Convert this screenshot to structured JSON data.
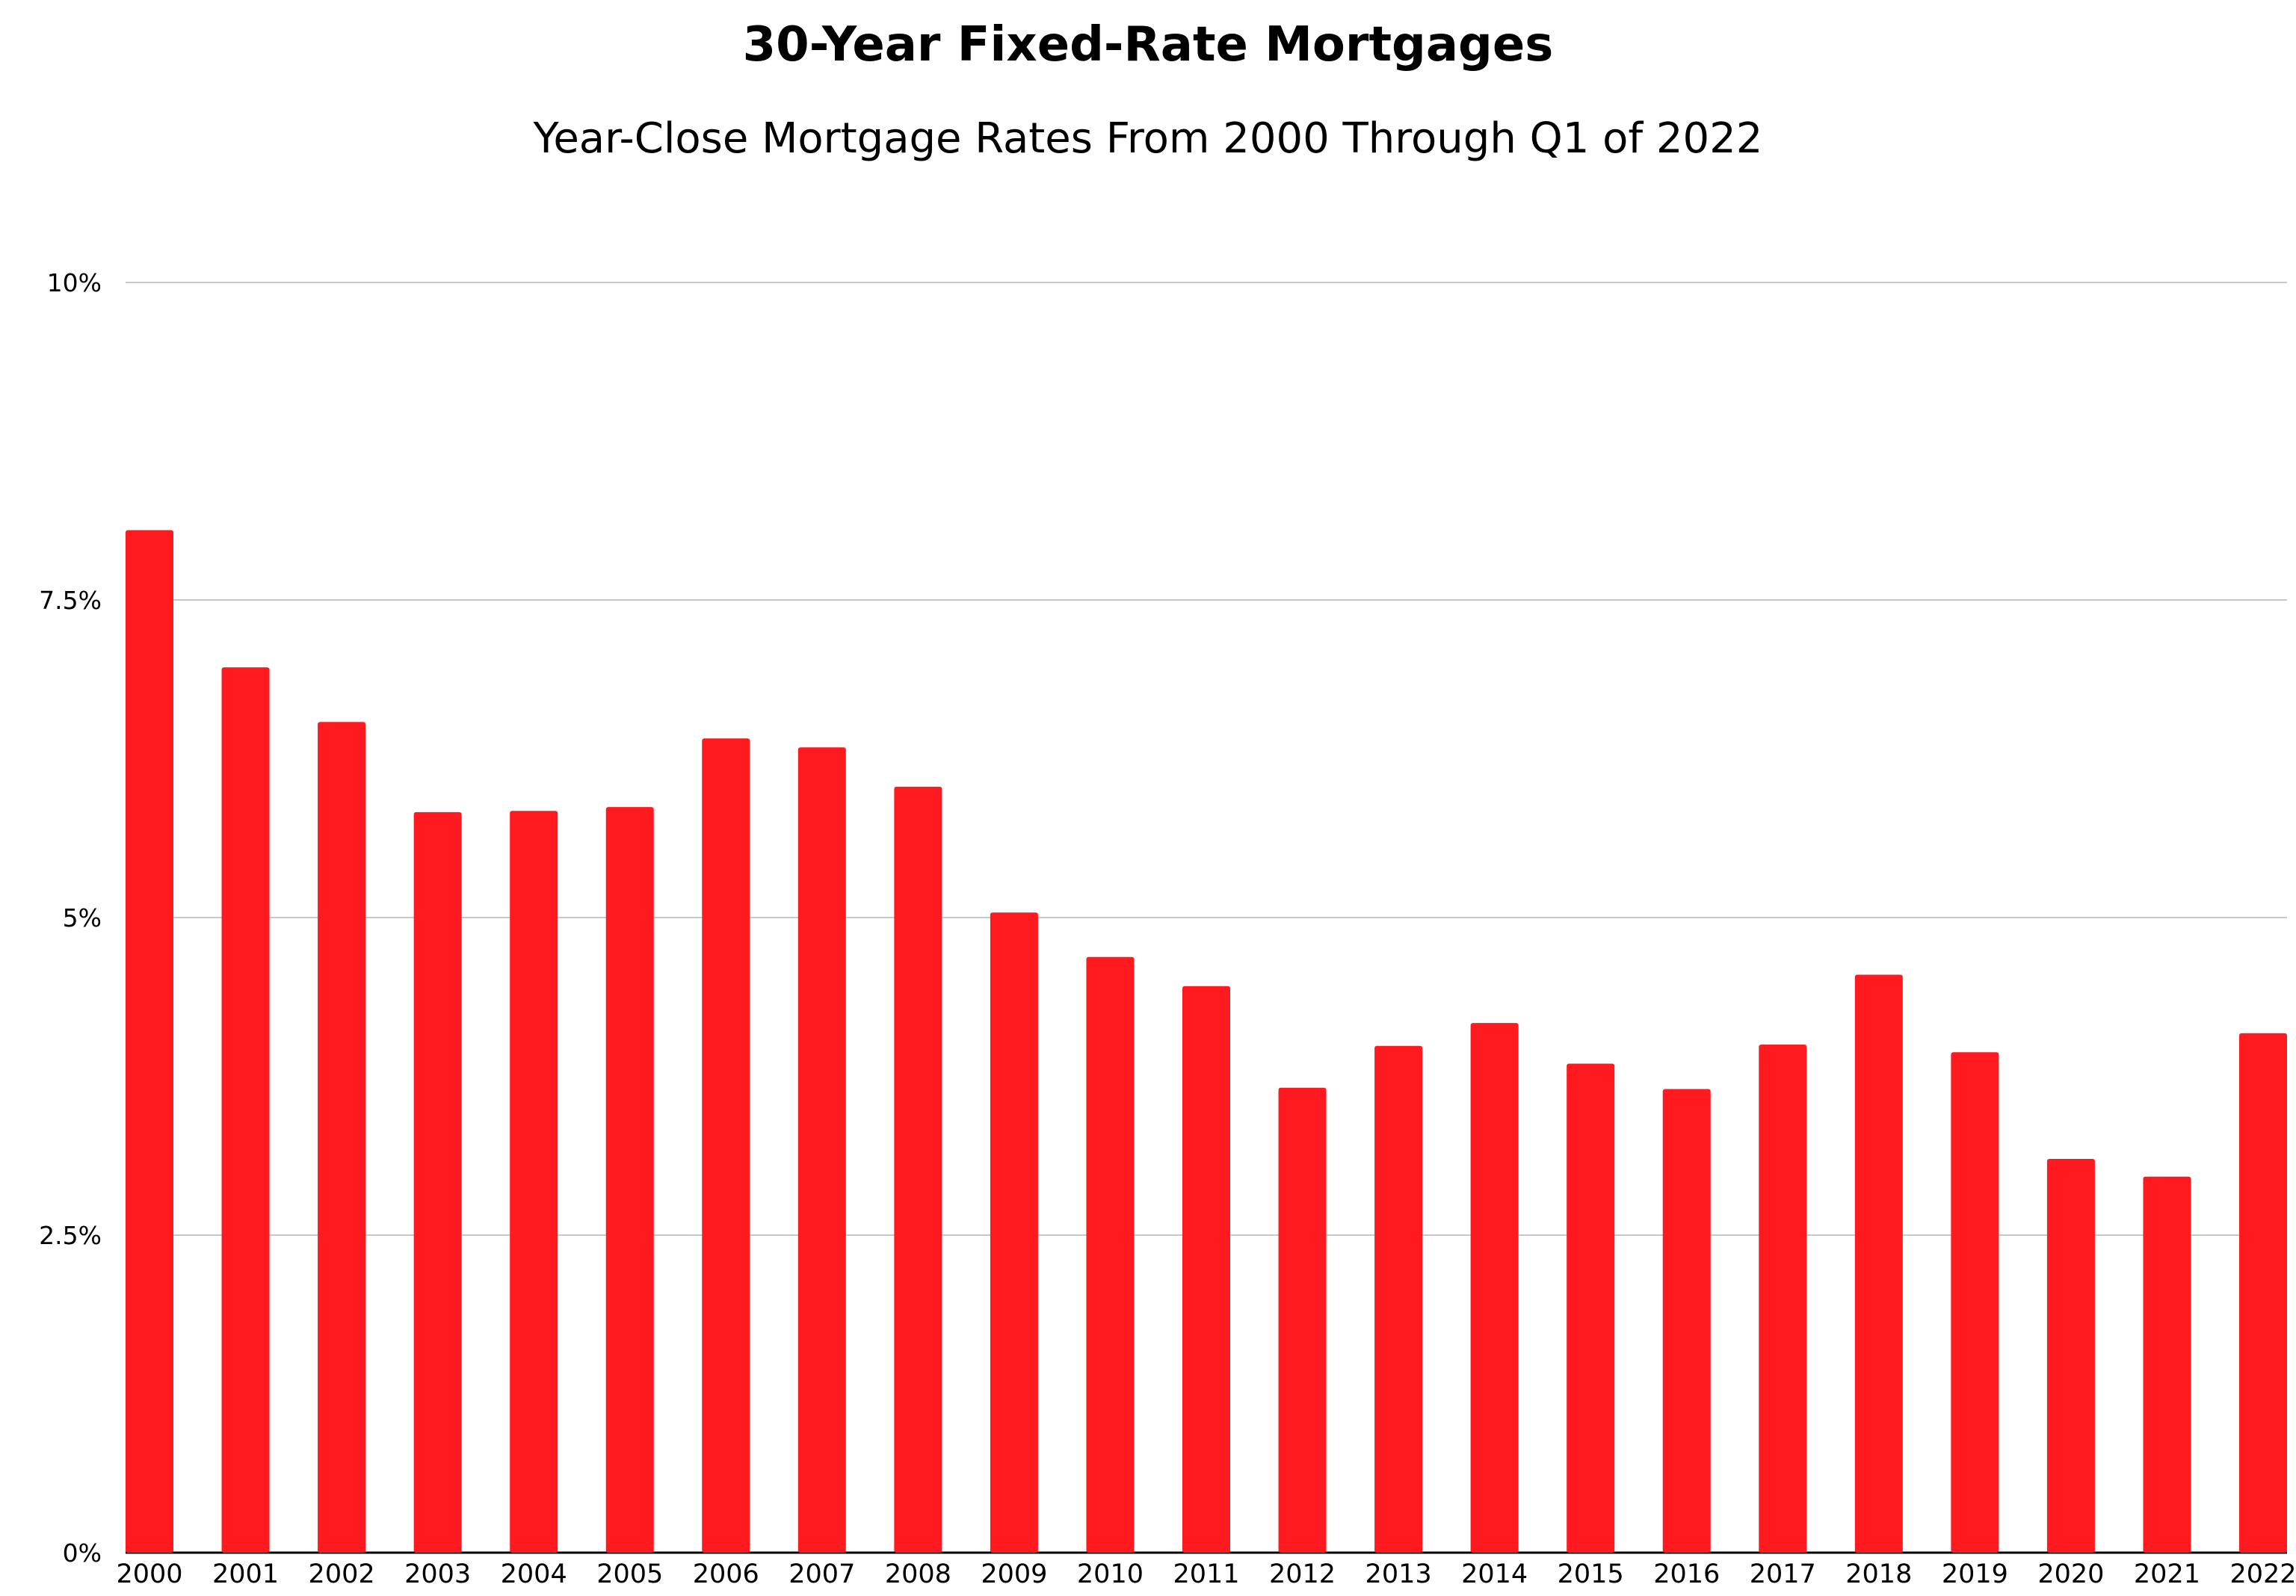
{
  "chart_data": {
    "type": "bar",
    "title": "30-Year Fixed-Rate Mortgages",
    "subtitle": "Year-Close Mortgage Rates From 2000 Through Q1 of 2022",
    "xlabel": "",
    "ylabel": "",
    "categories": [
      "2000",
      "2001",
      "2002",
      "2003",
      "2004",
      "2005",
      "2006",
      "2007",
      "2008",
      "2009",
      "2010",
      "2011",
      "2012",
      "2013",
      "2014",
      "2015",
      "2016",
      "2017",
      "2018",
      "2019",
      "2020",
      "2021",
      "2022"
    ],
    "values": [
      8.05,
      6.97,
      6.54,
      5.83,
      5.84,
      5.87,
      6.41,
      6.34,
      6.03,
      5.04,
      4.69,
      4.46,
      3.66,
      3.99,
      4.17,
      3.85,
      3.65,
      4.0,
      4.55,
      3.94,
      3.1,
      2.96,
      4.09
    ],
    "ylim": [
      0,
      10
    ],
    "yticks": [
      0,
      2.5,
      5,
      7.5,
      10
    ],
    "ytick_labels": [
      "0%",
      "2.5%",
      "5%",
      "7.5%",
      "10%"
    ],
    "grid": true,
    "legend": "none",
    "bar_color": "#ff1a1f",
    "grid_color": "#c8c8c8"
  }
}
